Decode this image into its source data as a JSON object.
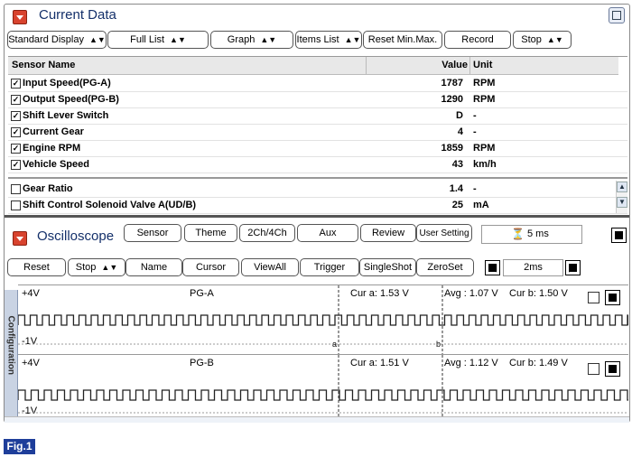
{
  "current_data": {
    "title": "Current Data",
    "toolbar": {
      "standard_display": "Standard Display",
      "full_list": "Full List",
      "graph": "Graph",
      "items_list": "Items List",
      "reset_min_max": "Reset Min.Max.",
      "record": "Record",
      "stop": "Stop"
    },
    "table": {
      "headers": {
        "name": "Sensor Name",
        "value": "Value",
        "unit": "Unit"
      },
      "rows": [
        {
          "checked": true,
          "name": "Input Speed(PG-A)",
          "value": "1787",
          "unit": "RPM"
        },
        {
          "checked": true,
          "name": "Output Speed(PG-B)",
          "value": "1290",
          "unit": "RPM"
        },
        {
          "checked": true,
          "name": "Shift Lever Switch",
          "value": "D",
          "unit": "-"
        },
        {
          "checked": true,
          "name": "Current Gear",
          "value": "4",
          "unit": "-"
        },
        {
          "checked": true,
          "name": "Engine RPM",
          "value": "1859",
          "unit": "RPM"
        },
        {
          "checked": true,
          "name": "Vehicle Speed",
          "value": "43",
          "unit": "km/h"
        },
        {
          "checked": false,
          "name": "Gear Ratio",
          "value": "1.4",
          "unit": "-"
        },
        {
          "checked": false,
          "name": "Shift Control Solenoid Valve A(UD/B)",
          "value": "25",
          "unit": "mA"
        }
      ]
    }
  },
  "oscilloscope": {
    "title": "Oscilloscope",
    "toolbar1": {
      "sensor": "Sensor",
      "theme": "Theme",
      "channels": "2Ch/4Ch",
      "aux": "Aux",
      "review": "Review",
      "user_setting": "User Setting",
      "time_display": "5 ms"
    },
    "toolbar2": {
      "reset": "Reset",
      "stop": "Stop",
      "name": "Name",
      "cursor": "Cursor",
      "view_all": "ViewAll",
      "trigger": "Trigger",
      "single_shot": "SingleShot",
      "zero_set": "ZeroSet",
      "time_div": "2ms"
    },
    "side_tab": "Configuration",
    "channels": [
      {
        "name": "PG-A",
        "top": "+4V",
        "bottom": "-1V",
        "cur_a": "Cur a: 1.53 V",
        "avg": "Avg : 1.07 V",
        "cur_b": "Cur b: 1.50 V",
        "cursor_a_label": "a",
        "cursor_b_label": "b"
      },
      {
        "name": "PG-B",
        "top": "+4V",
        "bottom": "-1V",
        "cur_a": "Cur a: 1.51 V",
        "avg": "Avg : 1.12 V",
        "cur_b": "Cur b: 1.49 V"
      }
    ]
  },
  "figure_label": "Fig.1",
  "icons": {
    "collapse": "collapse-arrow-icon",
    "window": "window-restore-icon",
    "scroll_up": "scroll-up-icon",
    "scroll_down": "scroll-down-icon",
    "prev": "triangle-left-icon",
    "next": "triangle-right-icon",
    "record_stop": "square-stop-icon"
  }
}
